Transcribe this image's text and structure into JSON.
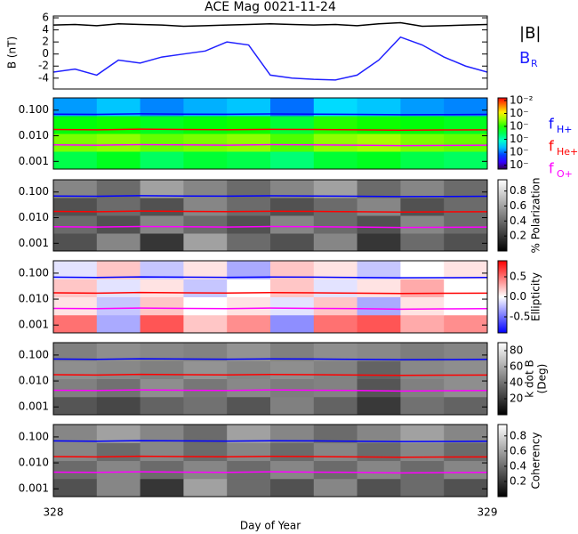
{
  "chart_data": [
    {
      "type": "line",
      "title": "ACE Mag 0021-11-24",
      "ylabel": "B (nT)",
      "xlim": [
        328,
        329
      ],
      "ylim": [
        -5.8,
        6.3
      ],
      "yticks": [
        -4,
        -2,
        0,
        2,
        4,
        6
      ],
      "x": [
        328,
        328.05,
        328.1,
        328.15,
        328.2,
        328.25,
        328.3,
        328.35,
        328.4,
        328.45,
        328.5,
        328.55,
        328.6,
        328.65,
        328.7,
        328.75,
        328.8,
        328.85,
        328.9,
        328.95,
        329
      ],
      "series": [
        {
          "name": "|B|",
          "color": "#000000",
          "values": [
            4.8,
            4.9,
            4.7,
            5.0,
            4.9,
            4.8,
            4.6,
            4.7,
            4.8,
            4.9,
            5.0,
            4.9,
            4.8,
            4.9,
            4.7,
            5.0,
            5.2,
            4.6,
            4.7,
            4.8,
            4.9
          ]
        },
        {
          "name": "B",
          "name_sub": "R",
          "color": "#2020ff",
          "values": [
            -3,
            -2.5,
            -3.5,
            -1,
            -1.5,
            -0.5,
            0,
            0.5,
            2,
            1.5,
            -3.5,
            -4,
            -4.2,
            -4.3,
            -3.5,
            -1,
            2.8,
            1.5,
            -0.5,
            -2,
            -3
          ]
        }
      ]
    },
    {
      "type": "spectrogram",
      "colormap": "rainbow",
      "xlim": [
        328,
        329
      ],
      "ylim": [
        0.0005,
        0.3
      ],
      "log_y": true,
      "yticks": [
        0.001,
        {
          "value": 0.01,
          "label": "0.010"
        },
        {
          "value": 0.1,
          "label": "0.100"
        }
      ],
      "clim": [
        -7.3,
        -1.8
      ],
      "cticks": [
        {
          "value": -2,
          "label": "10⁻²"
        },
        {
          "value": -3,
          "label": "10⁻"
        },
        {
          "value": -4,
          "label": "10⁻"
        },
        {
          "value": -5,
          "label": "10⁻"
        },
        {
          "value": -6,
          "label": "10⁻"
        },
        {
          "value": -7,
          "label": "10⁻"
        }
      ],
      "z": [
        [
          -4.5,
          -4.3,
          -4.6,
          -4.4,
          -4.5,
          -4.7,
          -4.4,
          -4.3,
          -4.5,
          -4.6
        ],
        [
          -3.6,
          -3.5,
          -3.7,
          -3.6,
          -3.5,
          -3.8,
          -3.5,
          -3.4,
          -3.6,
          -3.7
        ],
        [
          -4.2,
          -4.1,
          -4.3,
          -4.2,
          -4.1,
          -4.4,
          -4.0,
          -4.1,
          -4.2,
          -4.3
        ],
        [
          -5.8,
          -5.6,
          -5.9,
          -5.7,
          -5.6,
          -6.0,
          -5.5,
          -5.6,
          -5.8,
          -5.9
        ]
      ],
      "x": [
        328,
        328.1,
        328.2,
        328.3,
        328.4,
        328.5,
        328.6,
        328.7,
        328.8,
        328.9,
        329
      ],
      "series": [
        {
          "name": "f",
          "name_sub": "H+",
          "color": "#0000ff",
          "values": [
            0.07,
            0.068,
            0.072,
            0.07,
            0.069,
            0.071,
            0.07,
            0.068,
            0.066,
            0.067,
            0.068
          ]
        },
        {
          "name": "f",
          "name_sub": "He+",
          "color": "#ff0000",
          "values": [
            0.0175,
            0.017,
            0.018,
            0.0175,
            0.0172,
            0.0178,
            0.0175,
            0.017,
            0.0165,
            0.0168,
            0.017
          ]
        },
        {
          "name": "f",
          "name_sub": "O+",
          "color": "#ff00ff",
          "values": [
            0.0044,
            0.0043,
            0.0045,
            0.0044,
            0.0043,
            0.0045,
            0.0044,
            0.0043,
            0.0041,
            0.0042,
            0.0043
          ]
        }
      ]
    },
    {
      "type": "spectrogram",
      "colormap": "gray",
      "clabel": [
        "% Polarization"
      ],
      "xlim": [
        328,
        329
      ],
      "ylim": [
        0.0005,
        0.3
      ],
      "log_y": true,
      "yticks": [
        0.001,
        {
          "value": 0.01,
          "label": "0.010"
        },
        {
          "value": 0.1,
          "label": "0.100"
        }
      ],
      "clim": [
        0,
        0.95
      ],
      "cticks": [
        0.2,
        0.4,
        0.6,
        0.8
      ],
      "z": [
        [
          0.3,
          0.5,
          0.2,
          0.6,
          0.4,
          0.3,
          0.5,
          0.2,
          0.4,
          0.3
        ],
        [
          0.4,
          0.3,
          0.5,
          0.4,
          0.3,
          0.5,
          0.4,
          0.3,
          0.5,
          0.4
        ],
        [
          0.3,
          0.4,
          0.3,
          0.5,
          0.4,
          0.3,
          0.4,
          0.5,
          0.3,
          0.4
        ],
        [
          0.5,
          0.4,
          0.6,
          0.5,
          0.4,
          0.5,
          0.6,
          0.4,
          0.5,
          0.4
        ]
      ],
      "x": [
        328,
        328.1,
        328.2,
        328.3,
        328.4,
        328.5,
        328.6,
        328.7,
        328.8,
        328.9,
        329
      ],
      "series": [
        {
          "color": "#0000ff",
          "values": [
            0.07,
            0.068,
            0.072,
            0.07,
            0.069,
            0.071,
            0.07,
            0.068,
            0.066,
            0.067,
            0.068
          ]
        },
        {
          "color": "#ff0000",
          "values": [
            0.0175,
            0.017,
            0.018,
            0.0175,
            0.0172,
            0.0178,
            0.0175,
            0.017,
            0.0165,
            0.0168,
            0.017
          ]
        },
        {
          "color": "#ff00ff",
          "values": [
            0.0044,
            0.0043,
            0.0045,
            0.0044,
            0.0043,
            0.0045,
            0.0044,
            0.0043,
            0.0041,
            0.0042,
            0.0043
          ]
        }
      ]
    },
    {
      "type": "spectrogram",
      "colormap": "bwr",
      "clabel": [
        "Ellipticity"
      ],
      "xlim": [
        328,
        329
      ],
      "ylim": [
        0.0005,
        0.3
      ],
      "log_y": true,
      "yticks": [
        0.001,
        {
          "value": 0.01,
          "label": "0.010"
        },
        {
          "value": 0.1,
          "label": "0.100"
        }
      ],
      "clim": [
        -0.9,
        0.9
      ],
      "cticks": [
        -0.5,
        {
          "value": 0,
          "label": "0.0"
        },
        0.5
      ],
      "z": [
        [
          0.5,
          -0.3,
          0.6,
          0.2,
          0.4,
          -0.4,
          0.5,
          0.6,
          0.3,
          0.4
        ],
        [
          0.1,
          -0.2,
          0.2,
          0.0,
          0.1,
          -0.1,
          0.2,
          -0.3,
          0.1,
          0.0
        ],
        [
          0.2,
          -0.1,
          0.1,
          -0.2,
          0.0,
          0.2,
          -0.1,
          0.1,
          0.3,
          0.0
        ],
        [
          -0.1,
          0.2,
          -0.2,
          0.1,
          -0.3,
          0.2,
          0.1,
          -0.2,
          0.0,
          0.1
        ]
      ],
      "x": [
        328,
        328.1,
        328.2,
        328.3,
        328.4,
        328.5,
        328.6,
        328.7,
        328.8,
        328.9,
        329
      ],
      "series": [
        {
          "color": "#0000ff",
          "values": [
            0.07,
            0.068,
            0.072,
            0.07,
            0.069,
            0.071,
            0.07,
            0.068,
            0.066,
            0.067,
            0.068
          ]
        },
        {
          "color": "#ff0000",
          "values": [
            0.0175,
            0.017,
            0.018,
            0.0175,
            0.0172,
            0.0178,
            0.0175,
            0.017,
            0.0165,
            0.0168,
            0.017
          ]
        },
        {
          "color": "#ff00ff",
          "values": [
            0.0044,
            0.0043,
            0.0045,
            0.0044,
            0.0043,
            0.0045,
            0.0044,
            0.0043,
            0.0041,
            0.0042,
            0.0043
          ]
        }
      ]
    },
    {
      "type": "spectrogram",
      "colormap": "gray",
      "clabel": [
        "k dot B",
        "(Deg)"
      ],
      "xlim": [
        328,
        329
      ],
      "ylim": [
        0.0005,
        0.3
      ],
      "log_y": true,
      "yticks": [
        0.001,
        {
          "value": 0.01,
          "label": "0.010"
        },
        {
          "value": 0.1,
          "label": "0.100"
        }
      ],
      "clim": [
        0,
        90
      ],
      "cticks": [
        20,
        40,
        60,
        80
      ],
      "z": [
        [
          30,
          25,
          35,
          40,
          30,
          45,
          35,
          20,
          40,
          35
        ],
        [
          45,
          40,
          50,
          42,
          48,
          44,
          46,
          30,
          45,
          50
        ],
        [
          50,
          48,
          45,
          52,
          47,
          50,
          46,
          35,
          48,
          50
        ],
        [
          45,
          50,
          48,
          46,
          52,
          45,
          50,
          48,
          44,
          47
        ]
      ],
      "x": [
        328,
        328.1,
        328.2,
        328.3,
        328.4,
        328.5,
        328.6,
        328.7,
        328.8,
        328.9,
        329
      ],
      "series": [
        {
          "color": "#0000ff",
          "values": [
            0.07,
            0.068,
            0.072,
            0.07,
            0.069,
            0.071,
            0.07,
            0.068,
            0.066,
            0.067,
            0.068
          ]
        },
        {
          "color": "#ff0000",
          "values": [
            0.0175,
            0.017,
            0.018,
            0.0175,
            0.0172,
            0.0178,
            0.0175,
            0.017,
            0.0165,
            0.0168,
            0.017
          ]
        },
        {
          "color": "#ff00ff",
          "values": [
            0.0044,
            0.0043,
            0.0045,
            0.0044,
            0.0043,
            0.0045,
            0.0044,
            0.0043,
            0.0041,
            0.0042,
            0.0043
          ]
        }
      ]
    },
    {
      "type": "spectrogram",
      "colormap": "gray",
      "clabel": [
        "Coherency"
      ],
      "xlabel": "Day of Year",
      "xticks": [
        328,
        329
      ],
      "xlim": [
        328,
        329
      ],
      "ylim": [
        0.0005,
        0.3
      ],
      "log_y": true,
      "yticks": [
        0.001,
        {
          "value": 0.01,
          "label": "0.010"
        },
        {
          "value": 0.1,
          "label": "0.100"
        }
      ],
      "clim": [
        0,
        0.95
      ],
      "cticks": [
        0.2,
        0.4,
        0.6,
        0.8
      ],
      "z": [
        [
          0.3,
          0.5,
          0.2,
          0.6,
          0.4,
          0.3,
          0.5,
          0.3,
          0.4,
          0.3
        ],
        [
          0.4,
          0.5,
          0.4,
          0.5,
          0.4,
          0.5,
          0.4,
          0.5,
          0.4,
          0.5
        ],
        [
          0.5,
          0.4,
          0.5,
          0.4,
          0.5,
          0.4,
          0.5,
          0.4,
          0.5,
          0.4
        ],
        [
          0.5,
          0.6,
          0.5,
          0.4,
          0.6,
          0.5,
          0.4,
          0.5,
          0.6,
          0.5
        ]
      ],
      "x": [
        328,
        328.1,
        328.2,
        328.3,
        328.4,
        328.5,
        328.6,
        328.7,
        328.8,
        328.9,
        329
      ],
      "series": [
        {
          "color": "#0000ff",
          "values": [
            0.07,
            0.068,
            0.072,
            0.07,
            0.069,
            0.071,
            0.07,
            0.068,
            0.066,
            0.067,
            0.068
          ]
        },
        {
          "color": "#ff0000",
          "values": [
            0.0175,
            0.017,
            0.018,
            0.0175,
            0.0172,
            0.0178,
            0.0175,
            0.017,
            0.0165,
            0.0168,
            0.017
          ]
        },
        {
          "color": "#ff00ff",
          "values": [
            0.0044,
            0.0043,
            0.0045,
            0.0044,
            0.0043,
            0.0045,
            0.0044,
            0.0043,
            0.0041,
            0.0042,
            0.0043
          ]
        }
      ]
    }
  ]
}
